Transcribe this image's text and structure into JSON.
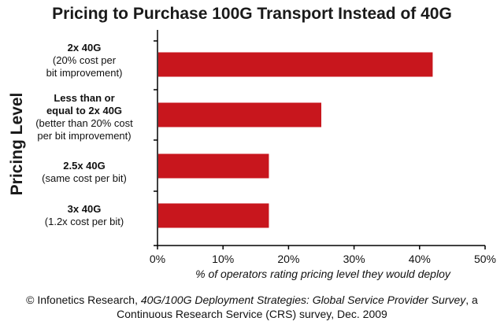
{
  "chart_data": {
    "type": "bar",
    "orientation": "horizontal",
    "title": "Pricing to Purchase 100G Transport Instead of 40G",
    "ylabel": "Pricing Level",
    "xlabel": "% of operators rating pricing level they would deploy",
    "categories": [
      {
        "line1": "2x 40G",
        "line2": "(20% cost per",
        "line3": "bit improvement)"
      },
      {
        "line1": "Less than or",
        "line1b": "equal to 2x 40G",
        "line2": "(better than 20% cost",
        "line3": "per bit improvement)"
      },
      {
        "line1": "2.5x 40G",
        "line2": "(same cost per bit)",
        "line3": ""
      },
      {
        "line1": "3x 40G",
        "line2": "(1.2x cost per bit)",
        "line3": ""
      }
    ],
    "values": [
      42,
      25,
      17,
      17
    ],
    "xlim": [
      0,
      50
    ],
    "xticks": [
      "0%",
      "10%",
      "20%",
      "30%",
      "40%",
      "50%"
    ],
    "bar_color": "#c8161d",
    "grid": false
  },
  "source": {
    "part1": "© Infonetics Research, ",
    "part2": "40G/100G Deployment Strategies: Global Service Provider Survey",
    "part3": ", a Continuous Research Service (CRS) survey, Dec. 2009"
  }
}
